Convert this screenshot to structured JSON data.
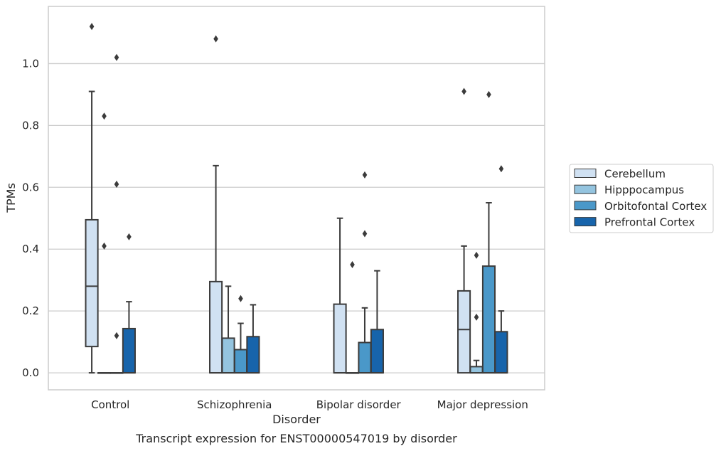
{
  "caption": "Transcript expression for ENST00000547019 by disorder",
  "chart_data": {
    "type": "box",
    "xlabel": "Disorder",
    "ylabel": "TPMs",
    "ylim": [
      -0.055,
      1.185
    ],
    "yticks": [
      0.0,
      0.2,
      0.4,
      0.6,
      0.8,
      1.0
    ],
    "ytick_labels": [
      "0.0",
      "0.2",
      "0.4",
      "0.6",
      "0.8",
      "1.0"
    ],
    "grid": "horizontal",
    "legend_position": "right",
    "categories": [
      "Control",
      "Schizophrenia",
      "Bipolar disorder",
      "Major depression"
    ],
    "series": [
      {
        "name": "Cerebellum",
        "color": "#d0e1f2",
        "boxes": [
          {
            "whislo": 0.0,
            "q1": 0.085,
            "med": 0.28,
            "q3": 0.495,
            "whishi": 0.91,
            "fliers": [
              1.12
            ]
          },
          {
            "whislo": 0.0,
            "q1": 0.0,
            "med": 0.0,
            "q3": 0.295,
            "whishi": 0.67,
            "fliers": [
              1.08
            ]
          },
          {
            "whislo": 0.0,
            "q1": 0.0,
            "med": 0.0,
            "q3": 0.222,
            "whishi": 0.5,
            "fliers": []
          },
          {
            "whislo": 0.0,
            "q1": 0.0,
            "med": 0.14,
            "q3": 0.265,
            "whishi": 0.41,
            "fliers": [
              0.91
            ]
          }
        ]
      },
      {
        "name": "Hipppocampus",
        "color": "#94c4df",
        "boxes": [
          {
            "whislo": 0.0,
            "q1": 0.0,
            "med": 0.0,
            "q3": 0.0,
            "whishi": 0.0,
            "fliers": [
              0.83,
              0.41
            ]
          },
          {
            "whislo": 0.0,
            "q1": 0.0,
            "med": 0.0,
            "q3": 0.112,
            "whishi": 0.28,
            "fliers": []
          },
          {
            "whislo": 0.0,
            "q1": 0.0,
            "med": 0.0,
            "q3": 0.0,
            "whishi": 0.0,
            "fliers": [
              0.35
            ]
          },
          {
            "whislo": 0.0,
            "q1": 0.0,
            "med": 0.0,
            "q3": 0.02,
            "whishi": 0.04,
            "fliers": [
              0.38,
              0.18
            ]
          }
        ]
      },
      {
        "name": "Orbitofontal Cortex",
        "color": "#4a98c9",
        "boxes": [
          {
            "whislo": 0.0,
            "q1": 0.0,
            "med": 0.0,
            "q3": 0.0,
            "whishi": 0.0,
            "fliers": [
              1.02,
              0.61,
              0.12
            ]
          },
          {
            "whislo": 0.0,
            "q1": 0.0,
            "med": 0.0,
            "q3": 0.075,
            "whishi": 0.16,
            "fliers": [
              0.24
            ]
          },
          {
            "whislo": 0.0,
            "q1": 0.0,
            "med": 0.0,
            "q3": 0.098,
            "whishi": 0.21,
            "fliers": [
              0.64,
              0.45
            ]
          },
          {
            "whislo": 0.0,
            "q1": 0.0,
            "med": 0.0,
            "q3": 0.345,
            "whishi": 0.55,
            "fliers": [
              0.9
            ]
          }
        ]
      },
      {
        "name": "Prefrontal Cortex",
        "color": "#1764ab",
        "boxes": [
          {
            "whislo": 0.0,
            "q1": 0.0,
            "med": 0.0,
            "q3": 0.143,
            "whishi": 0.23,
            "fliers": [
              0.44
            ]
          },
          {
            "whislo": 0.0,
            "q1": 0.0,
            "med": 0.0,
            "q3": 0.117,
            "whishi": 0.22,
            "fliers": []
          },
          {
            "whislo": 0.0,
            "q1": 0.0,
            "med": 0.0,
            "q3": 0.14,
            "whishi": 0.33,
            "fliers": []
          },
          {
            "whislo": 0.0,
            "q1": 0.0,
            "med": 0.0,
            "q3": 0.133,
            "whishi": 0.2,
            "fliers": [
              0.66
            ]
          }
        ]
      }
    ]
  }
}
